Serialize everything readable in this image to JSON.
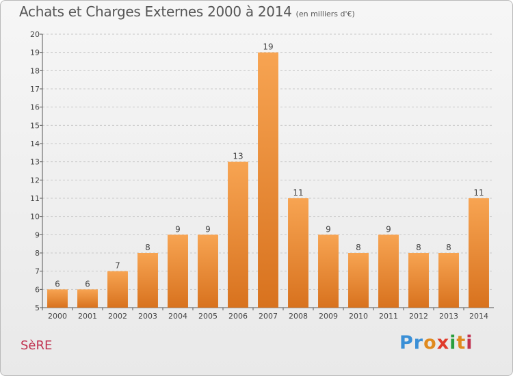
{
  "header": {
    "title": "Achats et Charges Externes 2000 à 2014",
    "subtitle": "(en milliers d'€)"
  },
  "footer": {
    "commune": "SèRE",
    "brand_letters": [
      {
        "ch": "P",
        "color": "#3a8fd6"
      },
      {
        "ch": "r",
        "color": "#3a8fd6"
      },
      {
        "ch": "o",
        "color": "#e08a1e"
      },
      {
        "ch": "x",
        "color": "#e03a2b"
      },
      {
        "ch": "i",
        "color": "#2a9e3e"
      },
      {
        "ch": "t",
        "color": "#e08a1e"
      },
      {
        "ch": "i",
        "color": "#c0314f"
      }
    ]
  },
  "chart_data": {
    "type": "bar",
    "title": "Achats et Charges Externes 2000 à 2014",
    "subtitle": "(en milliers d'€)",
    "xlabel": "",
    "ylabel": "",
    "categories": [
      "2000",
      "2001",
      "2002",
      "2003",
      "2004",
      "2005",
      "2006",
      "2007",
      "2008",
      "2009",
      "2010",
      "2011",
      "2012",
      "2013",
      "2014"
    ],
    "values": [
      6,
      6,
      7,
      8,
      9,
      9,
      13,
      19,
      11,
      9,
      8,
      9,
      8,
      8,
      11
    ],
    "ylim": [
      5,
      20
    ],
    "yticks": [
      5,
      6,
      7,
      8,
      9,
      10,
      11,
      12,
      13,
      14,
      15,
      16,
      17,
      18,
      19,
      20
    ],
    "grid": true,
    "colors": {
      "bar_light": "#f7a452",
      "bar_dark": "#d8721e",
      "grid": "#c8c8c8"
    }
  }
}
